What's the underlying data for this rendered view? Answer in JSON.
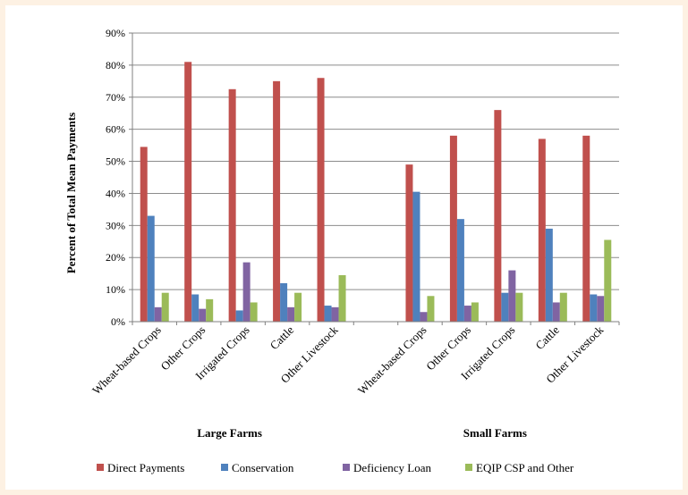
{
  "chart_data": {
    "type": "bar",
    "ylabel": "Percent of Total Mean Payments",
    "ylim": [
      0,
      90
    ],
    "yticks": [
      "0%",
      "10%",
      "20%",
      "30%",
      "40%",
      "50%",
      "60%",
      "70%",
      "80%",
      "90%"
    ],
    "grid": true,
    "legend_position": "bottom",
    "groups": [
      {
        "label": "Large Farms",
        "categories": [
          "Wheat-based Crops",
          "Other Crops",
          "Irrigated Crops",
          "Cattle",
          "Other Livestock"
        ]
      },
      {
        "label": "Small Farms",
        "categories": [
          "Wheat-based Crops",
          "Other Crops",
          "Irrigated Crops",
          "Cattle",
          "Other Livestock"
        ]
      }
    ],
    "series": [
      {
        "name": "Direct Payments",
        "color": "#c0504d",
        "values": [
          54.5,
          81,
          72.5,
          75,
          76,
          49,
          58,
          66,
          57,
          58
        ]
      },
      {
        "name": "Conservation",
        "color": "#4f81bd",
        "values": [
          33,
          8.5,
          3.5,
          12,
          5,
          40.5,
          32,
          9,
          29,
          8.5
        ]
      },
      {
        "name": "Deficiency Loan",
        "color": "#8064a2",
        "values": [
          4.5,
          4,
          18.5,
          4.5,
          4.5,
          3,
          5,
          16,
          6,
          8
        ]
      },
      {
        "name": "EQIP CSP and Other",
        "color": "#9bbb59",
        "values": [
          9,
          7,
          6,
          9,
          14.5,
          8,
          6,
          9,
          9,
          25.5
        ]
      }
    ]
  }
}
